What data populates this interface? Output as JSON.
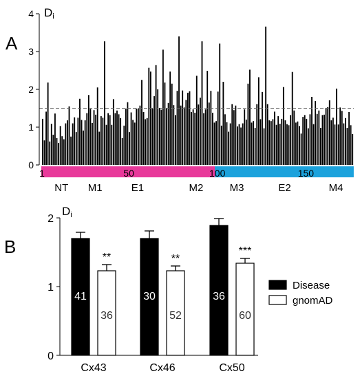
{
  "panels": {
    "a_label": "A",
    "b_label": "B"
  },
  "colors": {
    "bar": "#000000",
    "dashed": "#666666",
    "seg_pink": "#e8399a",
    "seg_blue": "#1ca2dc",
    "disease": "#000000",
    "gnomad": "#ffffff"
  },
  "chart_data": [
    {
      "type": "bar",
      "ylabel_main": "D",
      "ylabel_sub": "i",
      "ylim": [
        0,
        4
      ],
      "yticks": [
        0,
        1,
        2,
        3,
        4
      ],
      "threshold": 1.5,
      "x_start": 1,
      "x_ticks": [
        1,
        50,
        100,
        150
      ],
      "segments": [
        {
          "name": "pink",
          "start": 1,
          "end": 98,
          "color": "#e8399a"
        },
        {
          "name": "blue",
          "start": 99,
          "end": 176,
          "color": "#1ca2dc"
        }
      ],
      "regions": [
        {
          "label": "NT",
          "pos": 12
        },
        {
          "label": "M1",
          "pos": 31
        },
        {
          "label": "E1",
          "pos": 55
        },
        {
          "label": "M2",
          "pos": 88
        },
        {
          "label": "M3",
          "pos": 111
        },
        {
          "label": "E2",
          "pos": 138
        },
        {
          "label": "M4",
          "pos": 167
        }
      ],
      "values": [
        1.22,
        0.65,
        1.41,
        2.18,
        0.62,
        1.09,
        0.8,
        1.36,
        0.71,
        0.58,
        1.03,
        0.76,
        0.68,
        1.1,
        1.18,
        1.55,
        0.75,
        1.1,
        1.26,
        0.87,
        1.25,
        1.75,
        1.19,
        0.91,
        1.18,
        1.37,
        1.85,
        1.48,
        1.11,
        1.45,
        1.33,
        2.05,
        0.88,
        1.29,
        1.25,
        3.27,
        1.06,
        1.37,
        1.32,
        1.06,
        1.74,
        1.37,
        1.44,
        1.34,
        1.24,
        0.71,
        1.04,
        1.49,
        1.66,
        0.87,
        1.39,
        1.19,
        1.12,
        1.49,
        1.49,
        1.57,
        2.25,
        1.4,
        1.21,
        1.24,
        2.57,
        2.47,
        1.49,
        1.82,
        2.64,
        2.0,
        1.51,
        1.46,
        3.05,
        2.18,
        1.51,
        1.64,
        2.47,
        2.15,
        1.58,
        1.32,
        1.96,
        3.4,
        1.57,
        1.97,
        1.52,
        1.72,
        1.91,
        1.95,
        1.4,
        1.47,
        1.38,
        2.36,
        1.6,
        1.78,
        3.27,
        1.37,
        1.47,
        2.49,
        1.65,
        1.96,
        1.38,
        1.12,
        1.16,
        1.94,
        3.21,
        1.04,
        2.2,
        1.34,
        1.13,
        0.88,
        1.1,
        1.61,
        1.45,
        1.57,
        1.02,
        1.08,
        0.99,
        1.1,
        1.47,
        1.2,
        2.15,
        2.52,
        1.12,
        1.16,
        0.98,
        1.61,
        2.32,
        1.21,
        1.93,
        0.97,
        3.66,
        1.61,
        1.18,
        1.16,
        1.21,
        1.41,
        1.06,
        1.29,
        1.09,
        1.22,
        2.06,
        1.18,
        1.08,
        1.05,
        1.32,
        2.46,
        1.44,
        1.12,
        1.15,
        1.03,
        0.83,
        1.27,
        1.32,
        1.22,
        0.97,
        1.34,
        1.8,
        1.08,
        1.69,
        1.35,
        1.44,
        0.98,
        1.32,
        1.33,
        1.51,
        1.53,
        1.71,
        1.18,
        1.25,
        1.07,
        2.02,
        1.07,
        1.52,
        1.43,
        1.1,
        1.24,
        0.98,
        1.4,
        1.05,
        0.82
      ]
    },
    {
      "type": "bar",
      "ylabel_main": "D",
      "ylabel_sub": "i",
      "ylim": [
        0,
        2
      ],
      "yticks": [
        0,
        1,
        2
      ],
      "categories": [
        "Cx43",
        "Cx46",
        "Cx50"
      ],
      "series": [
        {
          "name": "Disease",
          "values": [
            1.7,
            1.7,
            1.89
          ],
          "errors": [
            0.09,
            0.11,
            0.1
          ],
          "counts": [
            "41",
            "30",
            "36"
          ]
        },
        {
          "name": "gnomAD",
          "values": [
            1.23,
            1.23,
            1.34
          ],
          "errors": [
            0.09,
            0.07,
            0.07
          ],
          "counts": [
            "36",
            "52",
            "60"
          ]
        }
      ],
      "significance": [
        "**",
        "**",
        "***"
      ],
      "legend_position": "right"
    }
  ]
}
